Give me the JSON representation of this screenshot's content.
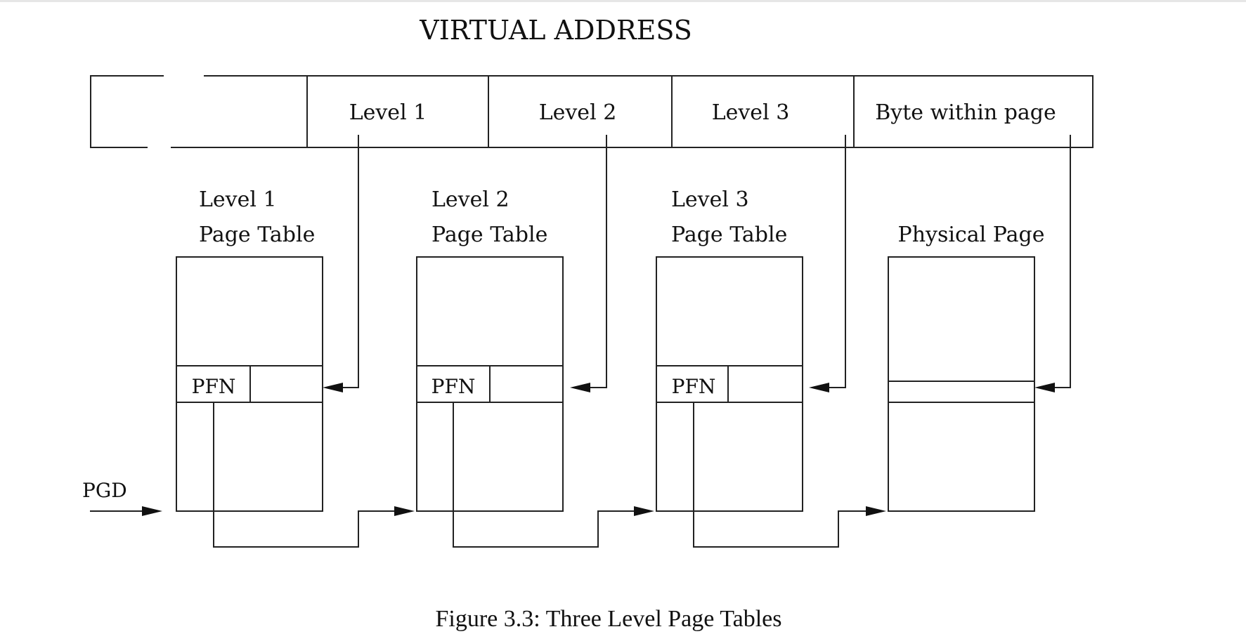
{
  "title": "VIRTUAL ADDRESS",
  "address_fields": [
    {
      "label": "Level 1"
    },
    {
      "label": "Level 2"
    },
    {
      "label": "Level 3"
    },
    {
      "label": "Byte within page"
    }
  ],
  "tables": [
    {
      "line1": "Level 1",
      "line2": "Page Table",
      "entry": "PFN"
    },
    {
      "line1": "Level 2",
      "line2": "Page Table",
      "entry": "PFN"
    },
    {
      "line1": "Level 3",
      "line2": "Page Table",
      "entry": "PFN"
    }
  ],
  "physical_page": {
    "label": "Physical Page"
  },
  "pgd_label": "PGD",
  "caption": "Figure 3.3: Three Level Page Tables"
}
